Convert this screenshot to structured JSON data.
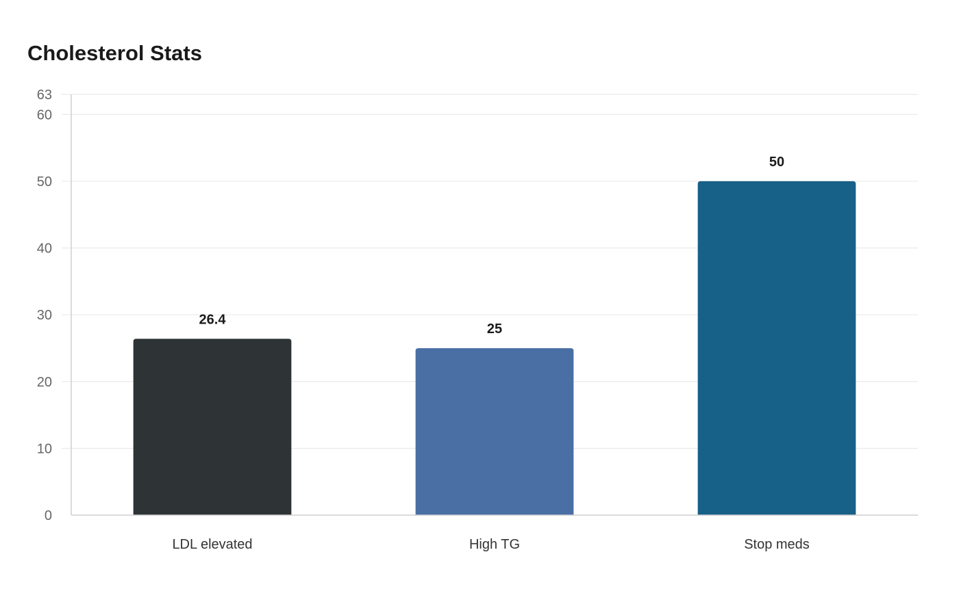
{
  "chart_data": {
    "type": "bar",
    "title": "Cholesterol Stats",
    "xlabel": "",
    "ylabel": "",
    "categories": [
      "LDL elevated",
      "High TG",
      "Stop meds"
    ],
    "values": [
      26.4,
      25,
      50
    ],
    "data_labels": [
      "26.4",
      "25",
      "50"
    ],
    "colors": [
      "#2e3436",
      "#4a6fa5",
      "#176087"
    ],
    "ylim": [
      0,
      63
    ],
    "yticks": [
      0,
      10,
      20,
      30,
      40,
      50,
      60,
      63
    ],
    "grid": true,
    "legend": "none"
  }
}
